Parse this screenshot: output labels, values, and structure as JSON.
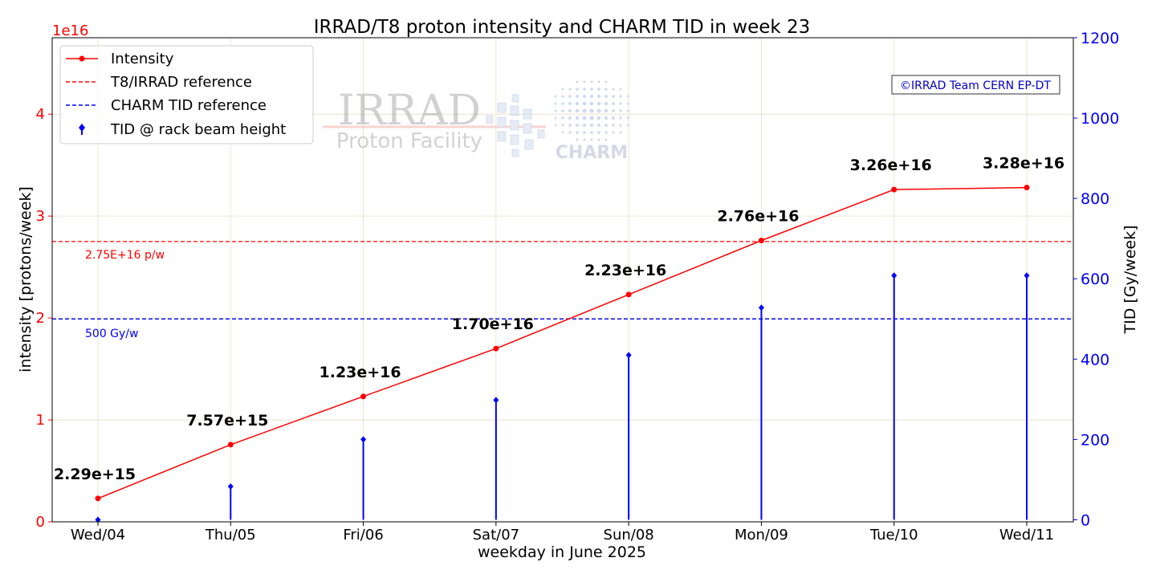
{
  "chart_data": {
    "type": "line",
    "title": "IRRAD/T8 proton intensity and CHARM TID in week 23",
    "xlabel": "weekday in June 2025",
    "ylabel_left": "intensity [protons/week]",
    "ylabel_right": "TID [Gy/week]",
    "left_axis_multiplier": "1e16",
    "categories": [
      "Wed/04",
      "Thu/05",
      "Fri/06",
      "Sat/07",
      "Sun/08",
      "Mon/09",
      "Tue/10",
      "Wed/11"
    ],
    "ylim_left": [
      0,
      4.75
    ],
    "yticks_left": [
      "0",
      "1",
      "2",
      "3",
      "4"
    ],
    "ylim_right": [
      -5,
      1200
    ],
    "yticks_right": [
      "0",
      "200",
      "400",
      "600",
      "800",
      "1000",
      "1200"
    ],
    "grid": true,
    "legend_position": "top-left",
    "series": [
      {
        "name": "Intensity",
        "axis": "left",
        "color": "#ff0000",
        "values": [
          0.229,
          0.757,
          1.23,
          1.7,
          2.23,
          2.76,
          3.26,
          3.28
        ],
        "labels": [
          "2.29e+15",
          "7.57e+15",
          "1.23e+16",
          "1.70e+16",
          "2.23e+16",
          "2.76e+16",
          "3.26e+16",
          "3.28e+16"
        ]
      },
      {
        "name": "TID @ rack beam height",
        "axis": "right",
        "style": "stem",
        "color": "#0000ff",
        "values": [
          0,
          83,
          200,
          298,
          410,
          528,
          608,
          608
        ]
      }
    ],
    "reference_lines": [
      {
        "name": "T8/IRRAD reference",
        "axis": "left",
        "value": 2.75,
        "color": "#ff0000",
        "label": "2.75E+16 p/w"
      },
      {
        "name": "CHARM TID reference",
        "axis": "right",
        "value": 500,
        "color": "#0000ff",
        "label": "500 Gy/w"
      }
    ],
    "annotation": "©IRRAD Team CERN EP-DT",
    "logo_text": {
      "irrad": "IRRAD",
      "facility": "Proton Facility",
      "charm": "CHARM"
    }
  }
}
